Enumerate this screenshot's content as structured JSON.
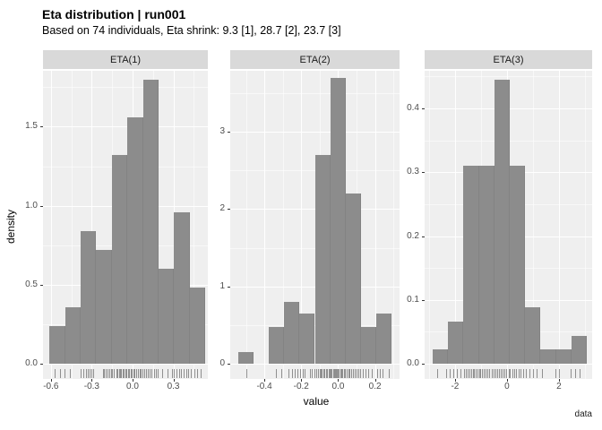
{
  "chart_data": {
    "type": "bar",
    "title": "Eta distribution | run001",
    "subtitle": "Based on 74 individuals, Eta shrink: 9.3 [1], 28.7 [2], 23.7 [3]",
    "xlabel": "value",
    "ylabel": "density",
    "caption": "data",
    "legend": "none",
    "grid": "on",
    "style": {
      "bar_color": "#8c8c8c",
      "panel_bg": "#efefef",
      "strip_bg": "#d9d9d9",
      "grid_color": "#ffffff",
      "tick_text_color": "#4d4d4d"
    },
    "panels": [
      {
        "facet": "ETA(1)",
        "xlim": [
          -0.658,
          0.553
        ],
        "ylim": [
          0,
          1.854
        ],
        "x_ticks": [
          {
            "v": -0.6,
            "label": "-0.6"
          },
          {
            "v": -0.3,
            "label": "-0.3"
          },
          {
            "v": 0.0,
            "label": "0.0"
          },
          {
            "v": 0.3,
            "label": "0.3"
          }
        ],
        "x_minor": [
          -0.45,
          -0.15,
          0.15,
          0.45
        ],
        "y_ticks": [
          {
            "v": 0.0,
            "label": "0.0"
          },
          {
            "v": 0.5,
            "label": "0.5"
          },
          {
            "v": 1.0,
            "label": "1.0"
          },
          {
            "v": 1.5,
            "label": "1.5"
          }
        ],
        "y_minor": [
          0.25,
          0.75,
          1.25,
          1.75
        ],
        "bins": {
          "start": -0.61,
          "width": 0.1145
        },
        "heights": [
          0.24,
          0.36,
          0.84,
          0.72,
          1.32,
          1.56,
          1.8,
          0.6,
          0.96,
          0.48
        ],
        "rug": [
          -0.57,
          -0.53,
          -0.5,
          -0.46,
          -0.38,
          -0.36,
          -0.345,
          -0.33,
          -0.315,
          -0.3,
          -0.29,
          -0.22,
          -0.21,
          -0.195,
          -0.185,
          -0.17,
          -0.16,
          -0.15,
          -0.135,
          -0.12,
          -0.11,
          -0.1,
          -0.095,
          -0.085,
          -0.075,
          -0.065,
          -0.055,
          -0.045,
          -0.035,
          -0.025,
          -0.015,
          -0.005,
          0.005,
          0.015,
          0.025,
          0.04,
          0.05,
          0.06,
          0.07,
          0.085,
          0.1,
          0.11,
          0.125,
          0.14,
          0.155,
          0.17,
          0.185,
          0.22,
          0.26,
          0.29,
          0.305,
          0.32,
          0.34,
          0.355,
          0.375,
          0.395,
          0.41,
          0.43,
          0.455,
          0.475,
          0.5
        ]
      },
      {
        "facet": "ETA(2)",
        "xlim": [
          -0.585,
          0.333
        ],
        "ylim": [
          0,
          3.79
        ],
        "x_ticks": [
          {
            "v": -0.4,
            "label": "-0.4"
          },
          {
            "v": -0.2,
            "label": "-0.2"
          },
          {
            "v": 0.0,
            "label": "0.0"
          },
          {
            "v": 0.2,
            "label": "0.2"
          }
        ],
        "x_minor": [
          -0.5,
          -0.3,
          -0.1,
          0.1,
          0.3
        ],
        "y_ticks": [
          {
            "v": 0,
            "label": "0"
          },
          {
            "v": 1,
            "label": "1"
          },
          {
            "v": 2,
            "label": "2"
          },
          {
            "v": 3,
            "label": "3"
          }
        ],
        "y_minor": [
          0.5,
          1.5,
          2.5,
          3.5
        ],
        "bins": {
          "start": -0.541,
          "width": 0.083
        },
        "heights": [
          0.15,
          0,
          0.48,
          0.8,
          0.65,
          2.7,
          3.7,
          2.2,
          0.48,
          0.65
        ],
        "rug": [
          -0.5,
          -0.335,
          -0.31,
          -0.27,
          -0.25,
          -0.235,
          -0.22,
          -0.205,
          -0.19,
          -0.18,
          -0.155,
          -0.145,
          -0.13,
          -0.12,
          -0.11,
          -0.1,
          -0.095,
          -0.088,
          -0.08,
          -0.073,
          -0.066,
          -0.06,
          -0.053,
          -0.047,
          -0.04,
          -0.034,
          -0.028,
          -0.022,
          -0.016,
          -0.01,
          -0.005,
          0.0,
          0.005,
          0.01,
          0.016,
          0.022,
          0.03,
          0.038,
          0.046,
          0.054,
          0.062,
          0.07,
          0.08,
          0.09,
          0.1,
          0.11,
          0.12,
          0.135,
          0.15,
          0.165,
          0.18,
          0.21,
          0.225,
          0.24,
          0.275
        ]
      },
      {
        "facet": "ETA(3)",
        "xlim": [
          -3.17,
          3.28
        ],
        "ylim": [
          0,
          0.459
        ],
        "x_ticks": [
          {
            "v": -2,
            "label": "-2"
          },
          {
            "v": 0,
            "label": "0"
          },
          {
            "v": 2,
            "label": "2"
          }
        ],
        "x_minor": [
          -3,
          -1,
          1,
          3
        ],
        "y_ticks": [
          {
            "v": 0.0,
            "label": "0.0"
          },
          {
            "v": 0.1,
            "label": "0.1"
          },
          {
            "v": 0.2,
            "label": "0.2"
          },
          {
            "v": 0.3,
            "label": "0.3"
          },
          {
            "v": 0.4,
            "label": "0.4"
          }
        ],
        "y_minor": [
          0.05,
          0.15,
          0.25,
          0.35,
          0.45
        ],
        "bins": {
          "start": -2.86,
          "width": 0.593
        },
        "heights": [
          0.022,
          0.066,
          0.31,
          0.31,
          0.445,
          0.31,
          0.089,
          0.022,
          0.022,
          0.044
        ],
        "rug": [
          -2.7,
          -2.35,
          -2.2,
          -2.05,
          -1.92,
          -1.78,
          -1.65,
          -1.57,
          -1.5,
          -1.44,
          -1.38,
          -1.32,
          -1.26,
          -1.2,
          -1.14,
          -1.08,
          -1.02,
          -0.96,
          -0.9,
          -0.84,
          -0.76,
          -0.68,
          -0.58,
          -0.5,
          -0.44,
          -0.38,
          -0.3,
          -0.24,
          -0.16,
          -0.1,
          -0.02,
          0.06,
          0.12,
          0.2,
          0.28,
          0.36,
          0.44,
          0.52,
          0.62,
          0.72,
          0.88,
          1.0,
          1.15,
          1.35,
          1.85,
          2.0,
          2.45,
          2.62,
          2.78
        ]
      }
    ]
  }
}
